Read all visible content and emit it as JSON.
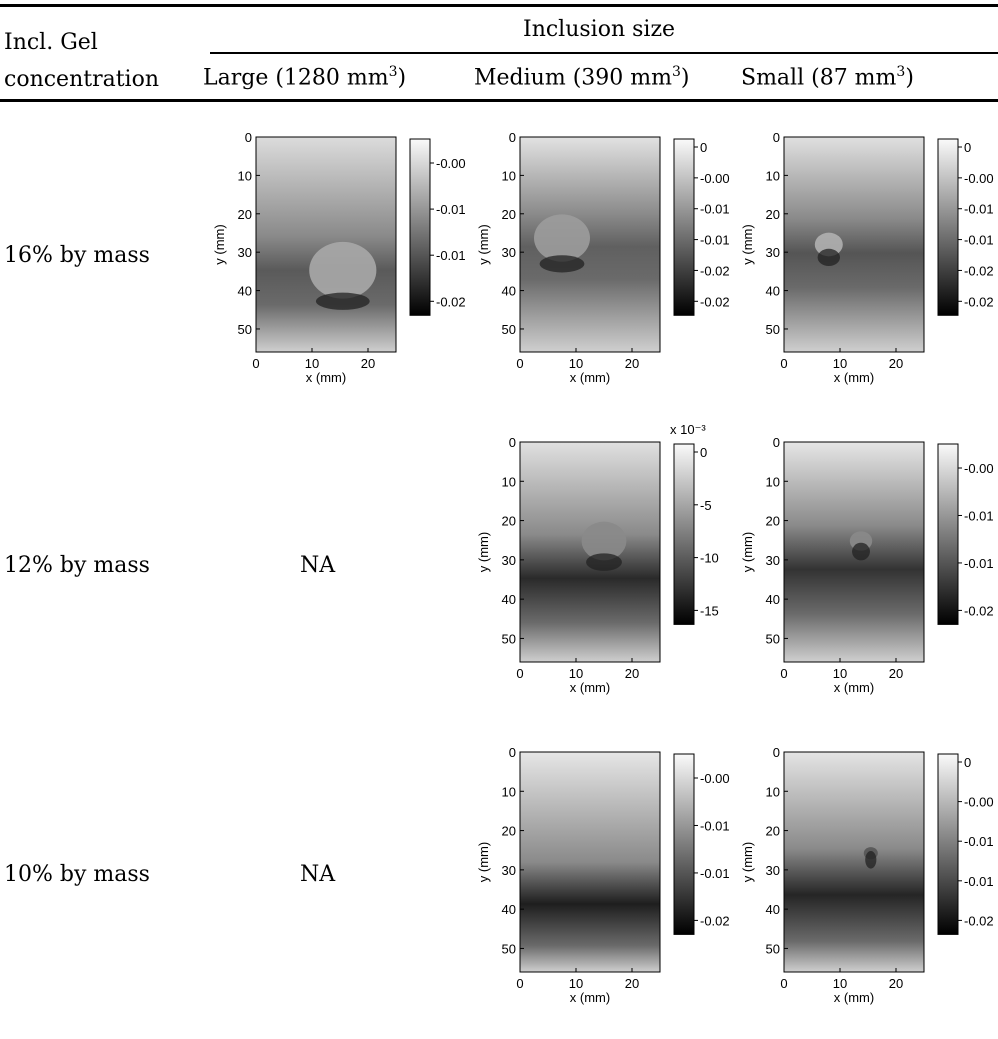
{
  "table": {
    "header": {
      "row_label_line1": "Incl. Gel",
      "row_label_line2": "concentration",
      "group": "Inclusion size",
      "columns": [
        {
          "name": "Large (1280 mm",
          "sup": "3",
          "close": ")"
        },
        {
          "name": "Medium (390 mm",
          "sup": "3",
          "close": ")"
        },
        {
          "name": "Small (87 mm",
          "sup": "3",
          "close": ")"
        }
      ]
    },
    "rows": [
      {
        "label": "16% by mass",
        "large": "plot",
        "medium": "plot",
        "small": "plot"
      },
      {
        "label": "12% by mass",
        "large": "NA",
        "medium": "plot",
        "small": "plot"
      },
      {
        "label": "10% by mass",
        "large": "NA",
        "medium": "plot",
        "small": "plot"
      }
    ]
  },
  "axes_common": {
    "xlabel": "x (mm)",
    "ylabel": "y (mm)",
    "x_ticks": [
      "0",
      "10",
      "20"
    ],
    "y_ticks": [
      "0",
      "10",
      "20",
      "30",
      "40",
      "50"
    ],
    "colormap": "grayscale"
  },
  "panels": [
    {
      "id": "p16L",
      "colorbar_ticks": [
        "-0.005",
        "-0.01",
        "-0.015",
        "-0.02"
      ],
      "colorbar_exponent": ""
    },
    {
      "id": "p16M",
      "colorbar_ticks": [
        "0",
        "-0.005",
        "-0.01",
        "-0.015",
        "-0.02",
        "-0.025"
      ],
      "colorbar_exponent": ""
    },
    {
      "id": "p16S",
      "colorbar_ticks": [
        "0",
        "-0.005",
        "-0.01",
        "-0.015",
        "-0.02",
        "-0.025"
      ],
      "colorbar_exponent": ""
    },
    {
      "id": "p12M",
      "colorbar_ticks": [
        "0",
        "-5",
        "-10",
        "-15"
      ],
      "colorbar_exponent": "x 10⁻³"
    },
    {
      "id": "p12S",
      "colorbar_ticks": [
        "-0.005",
        "-0.01",
        "-0.015",
        "-0.02"
      ],
      "colorbar_exponent": ""
    },
    {
      "id": "p10M",
      "colorbar_ticks": [
        "-0.005",
        "-0.01",
        "-0.015",
        "-0.02"
      ],
      "colorbar_exponent": ""
    },
    {
      "id": "p10S",
      "colorbar_ticks": [
        "0",
        "-0.005",
        "-0.01",
        "-0.015",
        "-0.02"
      ],
      "colorbar_exponent": ""
    }
  ]
}
